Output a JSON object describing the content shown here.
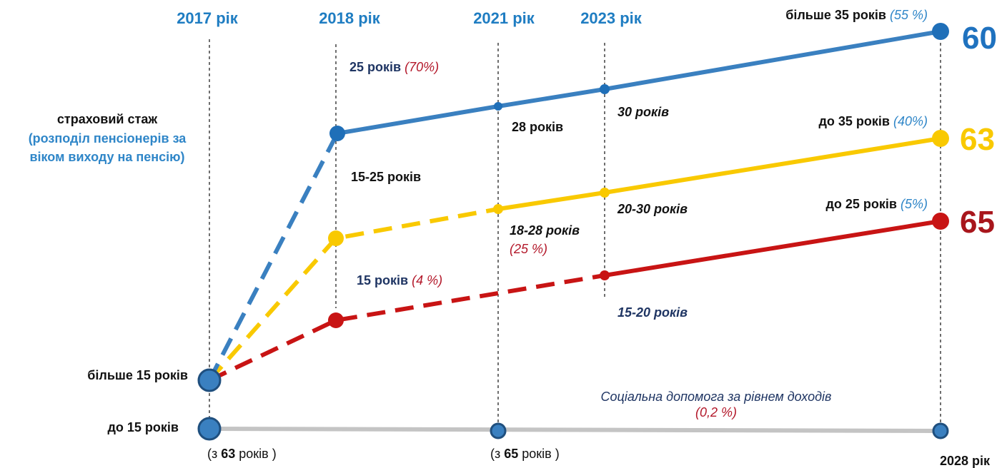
{
  "years": [
    "2017 рік",
    "2018 рік",
    "2021 рік",
    "2023 рік",
    "2028 рік"
  ],
  "left_label": {
    "title": "страховий стаж",
    "subtitle_lines": [
      "(розподіл пенсіонерів за",
      "віком виходу на пенсію)"
    ]
  },
  "start_labels": {
    "over_15": "більше 15 років",
    "up_to_15": "до 15 років"
  },
  "age_notes": [
    {
      "prefix": "(з ",
      "age": "63",
      "suffix": " років )"
    },
    {
      "prefix": "(з ",
      "age": "65",
      "suffix": " років )"
    }
  ],
  "groups": [
    {
      "label": "більше 35 років",
      "share": "(55 %)",
      "age": "60"
    },
    {
      "label": "до 35 років",
      "share": "(40%)",
      "age": "63"
    },
    {
      "label": "до 25 років",
      "share": "(5%)",
      "age": "65"
    }
  ],
  "blue_labels": {
    "y2018": "25 років",
    "y2018_share": "(70%)",
    "y2021": "28 років",
    "y2023": "30 років"
  },
  "yellow_labels": {
    "y2018": "15-25 років",
    "y2021": "18-28 років",
    "y2021_share": "(25 %)",
    "y2023": "20-30 років"
  },
  "red_labels": {
    "y2018": "15 років",
    "y2018_share": "(4 %)",
    "y2023": "15-20 років"
  },
  "social": {
    "label": "Соціальна допомога за рівнем доходів",
    "share": "(0,2 %)"
  }
}
